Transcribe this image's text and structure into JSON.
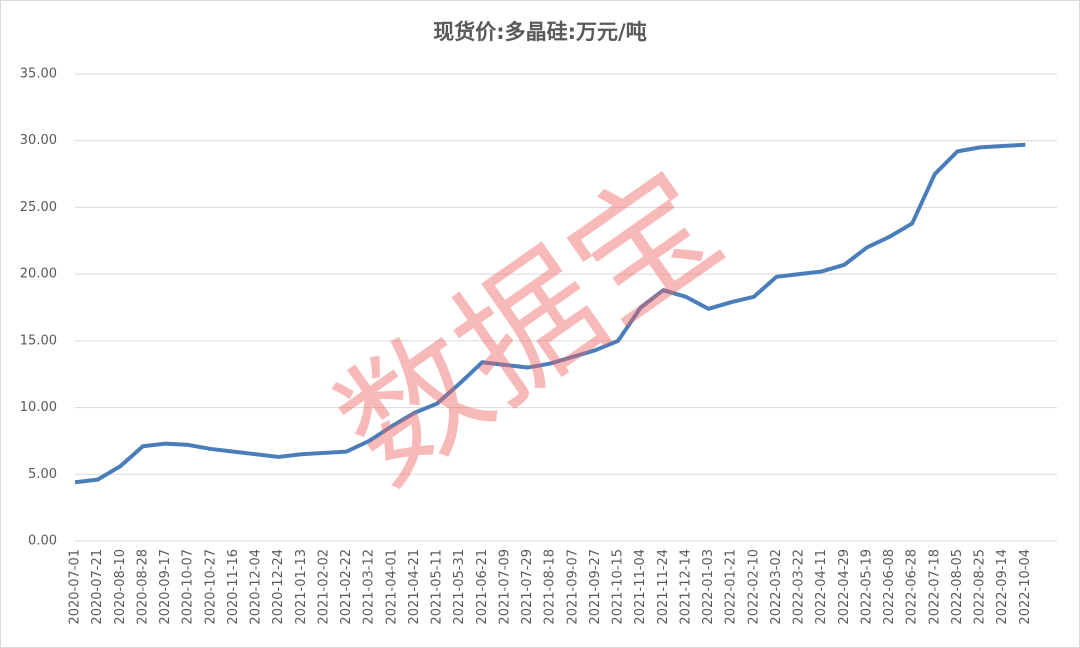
{
  "chart_data": {
    "type": "line",
    "title": "现货价:多晶硅:万元/吨",
    "watermark": "数据宝",
    "categories": [
      "2020-07-01",
      "2020-07-21",
      "2020-08-10",
      "2020-08-28",
      "2020-09-17",
      "2020-10-07",
      "2020-10-27",
      "2020-11-16",
      "2020-12-04",
      "2020-12-24",
      "2021-01-13",
      "2021-02-02",
      "2021-02-22",
      "2021-03-12",
      "2021-04-01",
      "2021-04-21",
      "2021-05-11",
      "2021-05-31",
      "2021-06-21",
      "2021-07-09",
      "2021-07-29",
      "2021-08-18",
      "2021-09-07",
      "2021-09-27",
      "2021-10-15",
      "2021-11-04",
      "2021-11-24",
      "2021-12-14",
      "2022-01-03",
      "2022-01-21",
      "2022-02-10",
      "2022-03-02",
      "2022-03-22",
      "2022-04-11",
      "2022-04-29",
      "2022-05-19",
      "2022-06-08",
      "2022-06-28",
      "2022-07-18",
      "2022-08-05",
      "2022-08-25",
      "2022-09-14",
      "2022-10-04"
    ],
    "series": [
      {
        "name": "现货价:多晶硅",
        "color": "#4a7ebb",
        "values": [
          4.4,
          4.6,
          5.6,
          7.1,
          7.3,
          7.2,
          6.9,
          6.7,
          6.5,
          6.3,
          6.5,
          6.6,
          6.7,
          7.5,
          8.6,
          9.6,
          10.3,
          11.8,
          13.4,
          13.2,
          13.0,
          13.3,
          13.8,
          14.3,
          15.0,
          17.5,
          18.8,
          18.3,
          17.4,
          17.9,
          18.3,
          19.8,
          20.0,
          20.2,
          20.7,
          22.0,
          22.8,
          23.8,
          27.5,
          29.2,
          29.5,
          29.6,
          29.7
        ]
      }
    ],
    "ylim": [
      0,
      35
    ],
    "yticks": [
      {
        "value": 0,
        "label": "0.00"
      },
      {
        "value": 5,
        "label": "5.00"
      },
      {
        "value": 10,
        "label": "10.00"
      },
      {
        "value": 15,
        "label": "15.00"
      },
      {
        "value": 20,
        "label": "20.00"
      },
      {
        "value": 25,
        "label": "25.00"
      },
      {
        "value": 30,
        "label": "30.00"
      },
      {
        "value": 35,
        "label": "35.00"
      }
    ],
    "grid": true
  }
}
